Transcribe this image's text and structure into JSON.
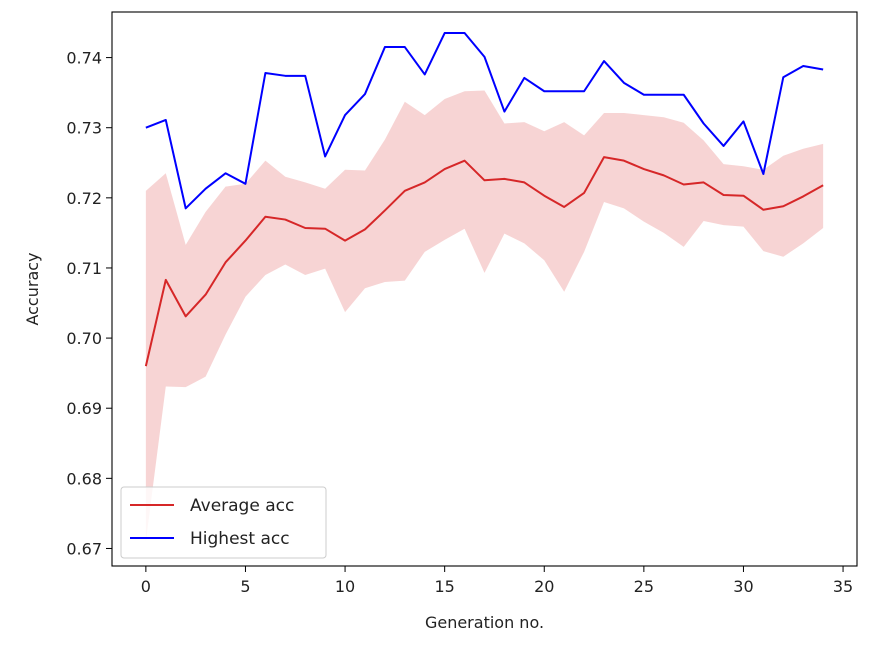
{
  "chart_data": {
    "type": "line",
    "xlabel": "Generation no.",
    "ylabel": "Accuracy",
    "xlim": [
      -1.7,
      35.7
    ],
    "ylim": [
      0.6675,
      0.7465
    ],
    "xticks": [
      0,
      5,
      10,
      15,
      20,
      25,
      30,
      35
    ],
    "yticks": [
      0.67,
      0.68,
      0.69,
      0.7,
      0.71,
      0.72,
      0.73,
      0.74
    ],
    "xtick_labels": [
      "0",
      "5",
      "10",
      "15",
      "20",
      "25",
      "30",
      "35"
    ],
    "ytick_labels": [
      "0.67",
      "0.68",
      "0.69",
      "0.70",
      "0.71",
      "0.72",
      "0.73",
      "0.74"
    ],
    "grid": false,
    "legend_position": "lower-left",
    "x": [
      0,
      1,
      2,
      3,
      4,
      5,
      6,
      7,
      8,
      9,
      10,
      11,
      12,
      13,
      14,
      15,
      16,
      17,
      18,
      19,
      20,
      21,
      22,
      23,
      24,
      25,
      26,
      27,
      28,
      29,
      30,
      31,
      32,
      33,
      34
    ],
    "series": [
      {
        "name": "Average acc",
        "color": "#d62728",
        "values": [
          0.696,
          0.7083,
          0.7031,
          0.7062,
          0.7108,
          0.7139,
          0.7173,
          0.7169,
          0.7157,
          0.7156,
          0.7139,
          0.7155,
          0.7182,
          0.721,
          0.7222,
          0.7241,
          0.7253,
          0.7225,
          0.7227,
          0.7222,
          0.7203,
          0.7187,
          0.7207,
          0.7258,
          0.7253,
          0.7241,
          0.7232,
          0.7219,
          0.7222,
          0.7204,
          0.7203,
          0.7183,
          0.7188,
          0.7202,
          0.7218
        ]
      },
      {
        "name": "Highest acc",
        "color": "#0000ff",
        "values": [
          0.73,
          0.7311,
          0.7185,
          0.7213,
          0.7235,
          0.722,
          0.7378,
          0.7374,
          0.7374,
          0.7259,
          0.7318,
          0.7348,
          0.7415,
          0.7415,
          0.7376,
          0.7435,
          0.7435,
          0.7401,
          0.7323,
          0.7371,
          0.7352,
          0.7352,
          0.7352,
          0.7395,
          0.7364,
          0.7347,
          0.7347,
          0.7347,
          0.7306,
          0.7274,
          0.7309,
          0.7234,
          0.7372,
          0.7388,
          0.7383
        ]
      }
    ],
    "band": {
      "series": "Average acc",
      "color": "#d62728",
      "opacity": 0.2,
      "upper": [
        0.721,
        0.7235,
        0.7133,
        0.718,
        0.7216,
        0.722,
        0.7253,
        0.723,
        0.7222,
        0.7213,
        0.724,
        0.7239,
        0.7283,
        0.7337,
        0.7318,
        0.7341,
        0.7352,
        0.7353,
        0.7306,
        0.7308,
        0.7295,
        0.7308,
        0.7289,
        0.7321,
        0.7321,
        0.7318,
        0.7315,
        0.7307,
        0.7282,
        0.7248,
        0.7245,
        0.724,
        0.726,
        0.727,
        0.7277
      ],
      "lower": [
        0.671,
        0.6931,
        0.693,
        0.6945,
        0.7005,
        0.7059,
        0.709,
        0.7105,
        0.709,
        0.7099,
        0.7037,
        0.7071,
        0.708,
        0.7082,
        0.7123,
        0.714,
        0.7156,
        0.7093,
        0.7149,
        0.7135,
        0.7111,
        0.7066,
        0.7123,
        0.7194,
        0.7185,
        0.7166,
        0.715,
        0.713,
        0.7167,
        0.7161,
        0.7159,
        0.7124,
        0.7116,
        0.7135,
        0.7157
      ]
    }
  }
}
